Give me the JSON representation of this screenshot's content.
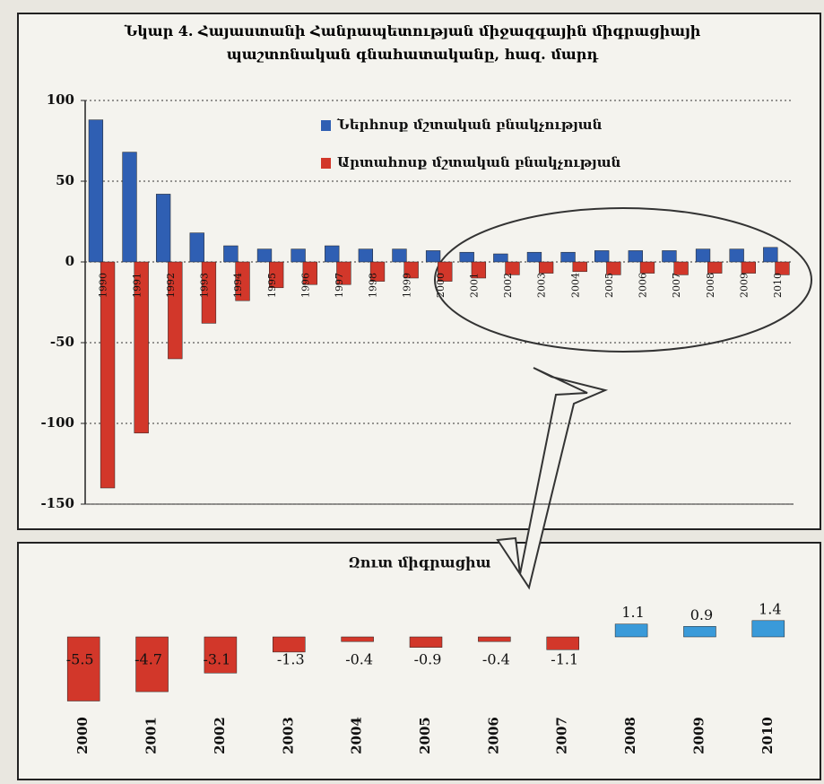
{
  "chart_data": [
    {
      "type": "bar",
      "title": "Նկար 4. Հայաստանի Հանրապետության միջազգային միգրացիայի պաշտոնական գնահատականը, հազ. մարդ",
      "categories": [
        "1990",
        "1991",
        "1992",
        "1993",
        "1994",
        "1995",
        "1996",
        "1997",
        "1998",
        "1999",
        "2000",
        "2001",
        "2002",
        "2003",
        "2004",
        "2005",
        "2006",
        "2007",
        "2008",
        "2009",
        "2010"
      ],
      "series": [
        {
          "name": "Ներհոսք մշտական բնակչության",
          "color": "#2f5fb3",
          "values": [
            88,
            68,
            42,
            18,
            10,
            8,
            8,
            10,
            8,
            8,
            7,
            6,
            5,
            6,
            6,
            7,
            7,
            7,
            8,
            8,
            9
          ]
        },
        {
          "name": "Արտահոսք մշտական բնակչության",
          "color": "#d2372a",
          "values": [
            -140,
            -106,
            -60,
            -38,
            -24,
            -16,
            -14,
            -14,
            -12,
            -10,
            -12,
            -10,
            -8,
            -7,
            -6,
            -8,
            -7,
            -8,
            -7,
            -7,
            -8
          ]
        }
      ],
      "ylim": [
        -150,
        100
      ],
      "yticks": [
        -150,
        -100,
        -50,
        0,
        50,
        100
      ],
      "grid": true,
      "legend": "top"
    },
    {
      "type": "bar",
      "title": "Զուտ միգրացիա",
      "categories": [
        "2000",
        "2001",
        "2002",
        "2003",
        "2004",
        "2005",
        "2006",
        "2007",
        "2008",
        "2009",
        "2010"
      ],
      "values": [
        -5.5,
        -4.7,
        -3.1,
        -1.3,
        -0.4,
        -0.9,
        -0.4,
        -1.1,
        1.1,
        0.9,
        1.4
      ],
      "colors": [
        "#d2372a",
        "#d2372a",
        "#d2372a",
        "#d2372a",
        "#d2372a",
        "#d2372a",
        "#d2372a",
        "#d2372a",
        "#3a9ad9",
        "#3a9ad9",
        "#3a9ad9"
      ]
    }
  ]
}
